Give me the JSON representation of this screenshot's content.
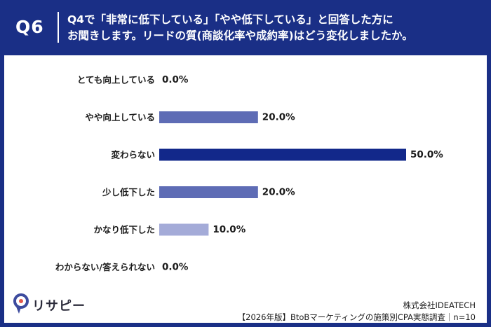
{
  "header": {
    "qnum": "Q6",
    "line1": "Q4で「非常に低下している」「やや低下している」と回答した方に",
    "line2": "お聞きします。リードの質(商談化率や成約率)はどう変化しましたか。"
  },
  "chart_data": {
    "type": "bar",
    "orientation": "horizontal",
    "categories": [
      "とても向上している",
      "やや向上している",
      "変わらない",
      "少し低下した",
      "かなり低下した",
      "わからない/答えられない"
    ],
    "values": [
      0.0,
      20.0,
      50.0,
      20.0,
      10.0,
      0.0
    ],
    "value_labels": [
      "0.0%",
      "20.0%",
      "50.0%",
      "20.0%",
      "10.0%",
      "0.0%"
    ],
    "bar_colors": [
      "#5e6cb5",
      "#5e6cb5",
      "#12288a",
      "#5e6cb5",
      "#a4abd8",
      "#5e6cb5"
    ],
    "xlim": [
      0,
      50
    ],
    "grid": false
  },
  "logo": {
    "text": "リサピー"
  },
  "footer": {
    "company": "株式会社IDEATECH",
    "survey": "【2026年版】BtoBマーケティングの施策別CPA実態調査｜n=10"
  }
}
